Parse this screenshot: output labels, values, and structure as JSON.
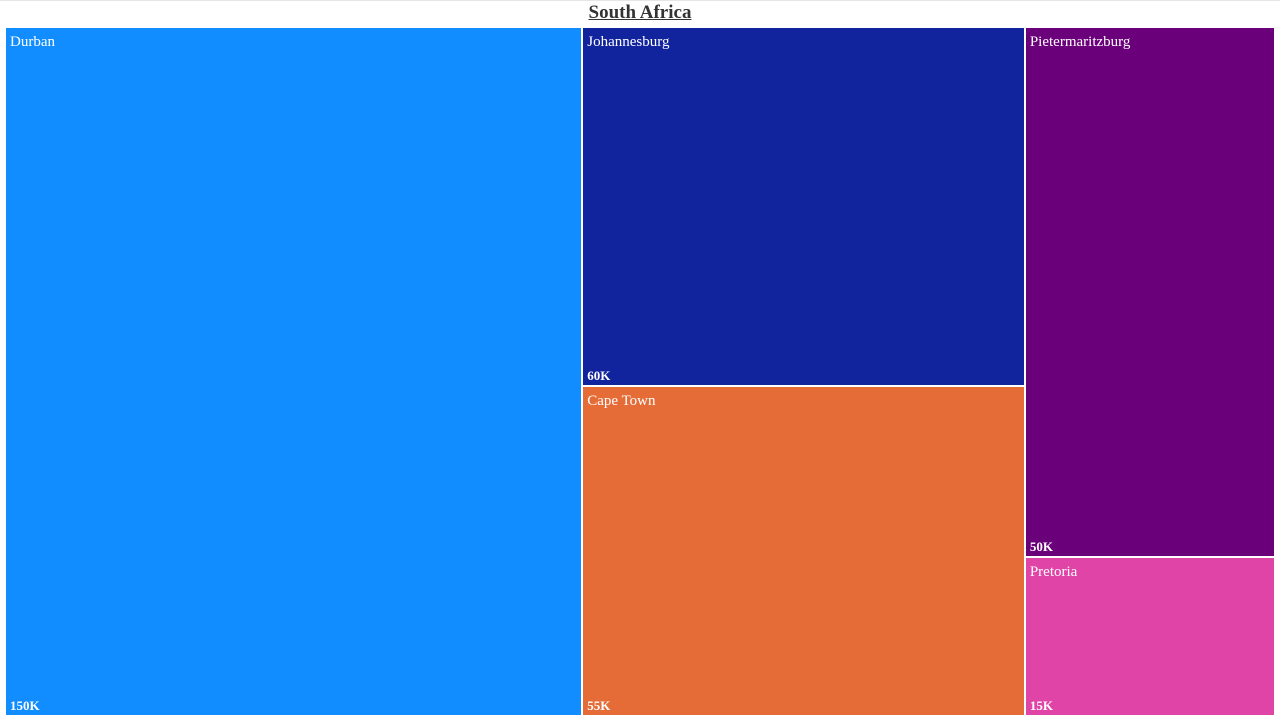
{
  "chart_data": {
    "type": "treemap",
    "title": "South Africa",
    "items": [
      {
        "name": "Durban",
        "value": 150000,
        "label": "150K",
        "color": "#118dff"
      },
      {
        "name": "Johannesburg",
        "value": 60000,
        "label": "60K",
        "color": "#12239e"
      },
      {
        "name": "Cape Town",
        "value": 55000,
        "label": "55K",
        "color": "#e66c37"
      },
      {
        "name": "Pietermaritzburg",
        "value": 50000,
        "label": "50K",
        "color": "#6b007b"
      },
      {
        "name": "Pretoria",
        "value": 15000,
        "label": "15K",
        "color": "#e044a7"
      }
    ]
  }
}
